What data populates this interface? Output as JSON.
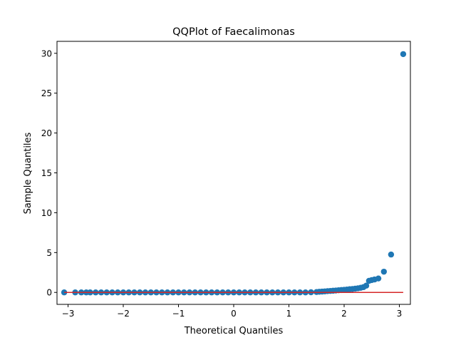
{
  "chart_data": {
    "type": "scatter",
    "title": "QQPlot of Faecalimonas",
    "xlabel": "Theoretical Quantiles",
    "ylabel": "Sample Quantiles",
    "xlim": [
      -3.2,
      3.2
    ],
    "ylim": [
      -1.5,
      31.5
    ],
    "xticks": [
      -3,
      -2,
      -1,
      0,
      1,
      2,
      3
    ],
    "xtick_labels": [
      "−3",
      "−2",
      "−1",
      "0",
      "1",
      "2",
      "3"
    ],
    "yticks": [
      0,
      5,
      10,
      15,
      20,
      25,
      30
    ],
    "ytick_labels": [
      "0",
      "5",
      "10",
      "15",
      "20",
      "25",
      "30"
    ],
    "grid": false,
    "series": [
      {
        "kind": "points",
        "color": "#1f77b4",
        "points": [
          [
            -3.07,
            0
          ],
          [
            -2.87,
            0
          ],
          [
            -2.76,
            0
          ],
          [
            -2.67,
            0
          ],
          [
            -2.6,
            0
          ],
          [
            -2.5,
            0
          ],
          [
            -2.4,
            0
          ],
          [
            -2.3,
            0
          ],
          [
            -2.2,
            0
          ],
          [
            -2.1,
            0
          ],
          [
            -2.0,
            0
          ],
          [
            -1.9,
            0
          ],
          [
            -1.8,
            0
          ],
          [
            -1.7,
            0
          ],
          [
            -1.6,
            0
          ],
          [
            -1.5,
            0
          ],
          [
            -1.4,
            0
          ],
          [
            -1.3,
            0
          ],
          [
            -1.2,
            0
          ],
          [
            -1.1,
            0
          ],
          [
            -1.0,
            0
          ],
          [
            -0.9,
            0
          ],
          [
            -0.8,
            0
          ],
          [
            -0.7,
            0
          ],
          [
            -0.6,
            0
          ],
          [
            -0.5,
            0
          ],
          [
            -0.4,
            0
          ],
          [
            -0.3,
            0
          ],
          [
            -0.2,
            0
          ],
          [
            -0.1,
            0
          ],
          [
            0.0,
            0
          ],
          [
            0.1,
            0
          ],
          [
            0.2,
            0
          ],
          [
            0.3,
            0
          ],
          [
            0.4,
            0
          ],
          [
            0.5,
            0
          ],
          [
            0.6,
            0
          ],
          [
            0.7,
            0
          ],
          [
            0.8,
            0
          ],
          [
            0.9,
            0
          ],
          [
            1.0,
            0
          ],
          [
            1.1,
            0
          ],
          [
            1.2,
            0
          ],
          [
            1.3,
            0
          ],
          [
            1.4,
            0.02
          ],
          [
            1.5,
            0.05
          ],
          [
            1.55,
            0.08
          ],
          [
            1.6,
            0.1
          ],
          [
            1.65,
            0.13
          ],
          [
            1.7,
            0.16
          ],
          [
            1.75,
            0.18
          ],
          [
            1.8,
            0.21
          ],
          [
            1.85,
            0.24
          ],
          [
            1.9,
            0.27
          ],
          [
            1.95,
            0.3
          ],
          [
            2.0,
            0.33
          ],
          [
            2.05,
            0.36
          ],
          [
            2.1,
            0.4
          ],
          [
            2.15,
            0.43
          ],
          [
            2.2,
            0.47
          ],
          [
            2.25,
            0.52
          ],
          [
            2.3,
            0.58
          ],
          [
            2.35,
            0.66
          ],
          [
            2.4,
            0.85
          ],
          [
            2.45,
            1.45
          ],
          [
            2.5,
            1.55
          ],
          [
            2.55,
            1.62
          ],
          [
            2.62,
            1.75
          ],
          [
            2.72,
            2.6
          ],
          [
            2.85,
            4.75
          ],
          [
            3.07,
            29.9
          ]
        ]
      },
      {
        "kind": "reference-line",
        "color": "#d62728",
        "x": [
          -3.07,
          3.07
        ],
        "y": [
          0,
          0
        ]
      }
    ]
  }
}
